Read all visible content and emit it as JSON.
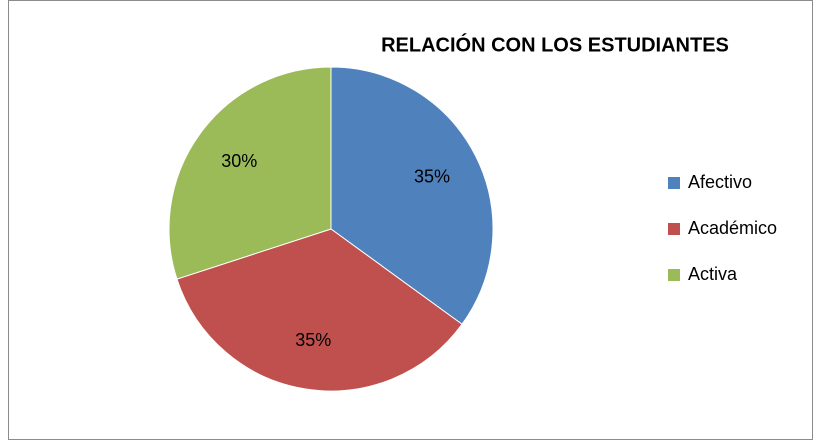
{
  "chart_data": {
    "type": "pie",
    "title": "RELACIÓN CON LOS ESTUDIANTES",
    "categories": [
      "Afectivo",
      "Académico",
      "Activa"
    ],
    "values": [
      35,
      35,
      30
    ],
    "value_labels": [
      "35%",
      "35%",
      "30%"
    ],
    "colors": [
      "#4f81bd",
      "#c0504d",
      "#9bbb59"
    ]
  }
}
